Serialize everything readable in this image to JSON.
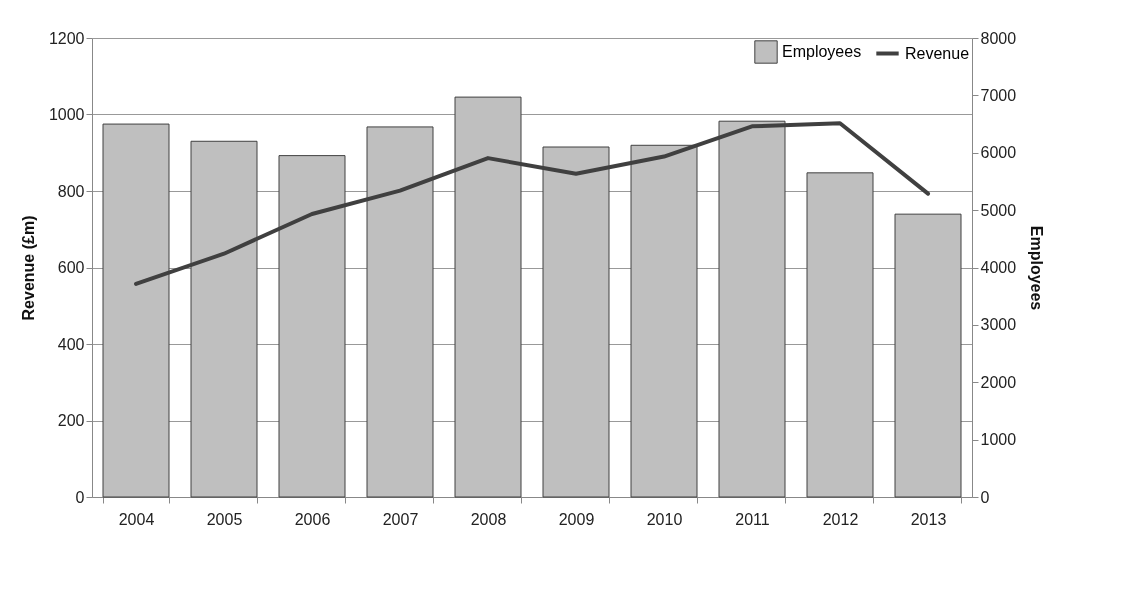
{
  "chart_data": {
    "type": "bar",
    "categories": [
      "2004",
      "2005",
      "2006",
      "2007",
      "2008",
      "2009",
      "2010",
      "2011",
      "2012",
      "2013"
    ],
    "series": [
      {
        "name": "Employees",
        "type": "bar",
        "axis": "y2",
        "color": "#bfbfbf",
        "values": [
          6500,
          6200,
          5950,
          6450,
          6970,
          6100,
          6130,
          6550,
          5650,
          4930
        ]
      },
      {
        "name": "Revenue",
        "type": "line",
        "color": "#404040",
        "values": [
          557,
          636,
          740,
          801,
          886,
          845,
          890,
          969,
          977,
          793
        ]
      }
    ],
    "ylabel": "Revenue (£m)",
    "y2label": "Employees",
    "ylim": [
      0,
      1200
    ],
    "yticks": [
      0,
      200,
      400,
      600,
      800,
      1000,
      1200
    ],
    "y2lim": [
      0,
      8000
    ],
    "y2ticks": [
      0,
      1000,
      2000,
      3000,
      4000,
      5000,
      6000,
      7000,
      8000
    ],
    "grid": "y",
    "legend": "top right"
  }
}
